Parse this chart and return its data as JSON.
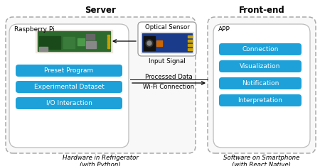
{
  "title_server": "Server",
  "title_frontend": "Front-end",
  "rpi_label": "Raspberry Pi",
  "app_label": "APP",
  "blue_buttons_left": [
    "Preset Program",
    "Experimental Dataset",
    "I/O Interaction"
  ],
  "blue_buttons_right": [
    "Connection",
    "Visualization",
    "Notification",
    "Interpretation"
  ],
  "optical_sensor_label": "Optical Sensor",
  "input_signal_label": "Input Signal",
  "processed_data_label": "Processed Data",
  "wifi_label": "Wi-Fi Connection",
  "bottom_left": "Hardware in Refrigerator\n(with Python)",
  "bottom_right": "Software on Smartphone\n(with React Native)",
  "button_color": "#1da1d8",
  "button_text_color": "#ffffff",
  "bg_color": "#ffffff",
  "dash_color": "#aaaaaa",
  "inner_box_color": "#f0f0f0"
}
